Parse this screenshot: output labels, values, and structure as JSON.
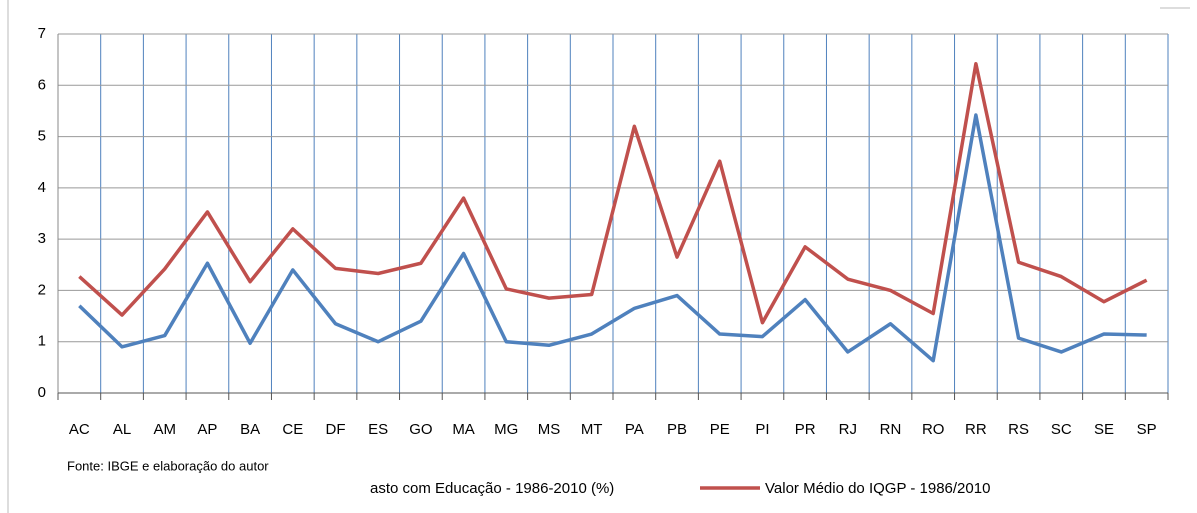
{
  "chart_data": {
    "type": "line",
    "categories": [
      "AC",
      "AL",
      "AM",
      "AP",
      "BA",
      "CE",
      "DF",
      "ES",
      "GO",
      "MA",
      "MG",
      "MS",
      "MT",
      "PA",
      "PB",
      "PE",
      "PI",
      "PR",
      "RJ",
      "RN",
      "RO",
      "RR",
      "RS",
      "SC",
      "SE",
      "SP"
    ],
    "series": [
      {
        "name": "asto com Educação - 1986-2010 (%)",
        "color": "#4f81bd",
        "values": [
          1.7,
          0.9,
          1.12,
          2.53,
          0.97,
          2.4,
          1.35,
          1.0,
          1.4,
          2.72,
          1.0,
          0.93,
          1.15,
          1.65,
          1.9,
          1.15,
          1.1,
          1.82,
          0.8,
          1.35,
          0.63,
          5.42,
          1.07,
          0.8,
          1.15,
          1.13
        ]
      },
      {
        "name": "Valor Médio do IQGP - 1986/2010",
        "color": "#c0504d",
        "values": [
          2.27,
          1.52,
          2.42,
          3.53,
          2.17,
          3.2,
          2.43,
          2.33,
          2.53,
          3.8,
          2.03,
          1.85,
          1.92,
          5.2,
          2.65,
          4.52,
          1.37,
          2.85,
          2.22,
          2.0,
          1.55,
          6.42,
          2.55,
          2.27,
          1.78,
          2.2
        ]
      }
    ],
    "ylim": [
      0,
      7
    ],
    "yticks": [
      0,
      1,
      2,
      3,
      4,
      5,
      6,
      7
    ],
    "grid": true,
    "note": "Fonte: IBGE e elaboração do autor"
  }
}
